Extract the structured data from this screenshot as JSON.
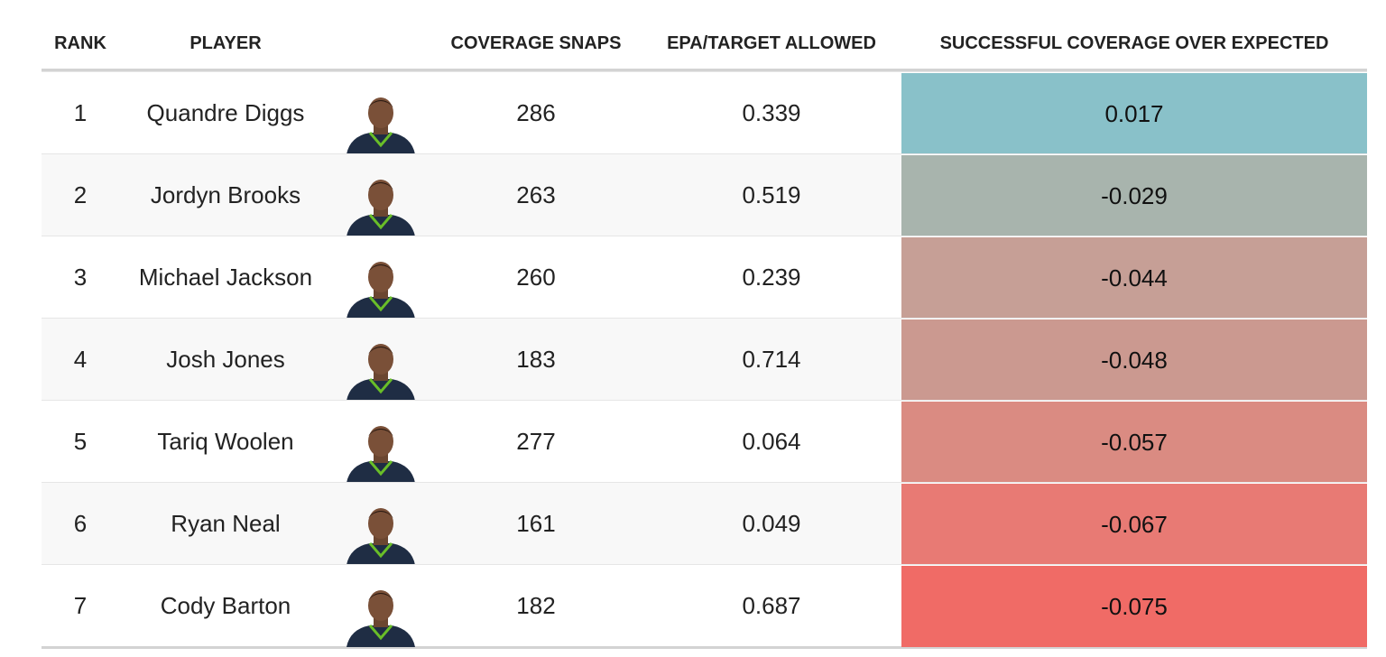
{
  "table": {
    "columns": [
      "RANK",
      "PLAYER",
      "COVERAGE SNAPS",
      "EPA/TARGET ALLOWED",
      "SUCCESSFUL COVERAGE OVER EXPECTED"
    ],
    "rows": [
      {
        "rank": "1",
        "player": "Quandre Diggs",
        "snaps": "286",
        "epa": "0.339",
        "scoe": "0.017",
        "color": "#89c1c9"
      },
      {
        "rank": "2",
        "player": "Jordyn Brooks",
        "snaps": "263",
        "epa": "0.519",
        "scoe": "-0.029",
        "color": "#a8b4ad"
      },
      {
        "rank": "3",
        "player": "Michael Jackson",
        "snaps": "260",
        "epa": "0.239",
        "scoe": "-0.044",
        "color": "#c69f96"
      },
      {
        "rank": "4",
        "player": "Josh Jones",
        "snaps": "183",
        "epa": "0.714",
        "scoe": "-0.048",
        "color": "#cb9990"
      },
      {
        "rank": "5",
        "player": "Tariq Woolen",
        "snaps": "277",
        "epa": "0.064",
        "scoe": "-0.057",
        "color": "#da8b82"
      },
      {
        "rank": "6",
        "player": "Ryan Neal",
        "snaps": "161",
        "epa": "0.049",
        "scoe": "-0.067",
        "color": "#e87a74"
      },
      {
        "rank": "7",
        "player": "Cody Barton",
        "snaps": "182",
        "epa": "0.687",
        "scoe": "-0.075",
        "color": "#f06b66"
      }
    ]
  }
}
